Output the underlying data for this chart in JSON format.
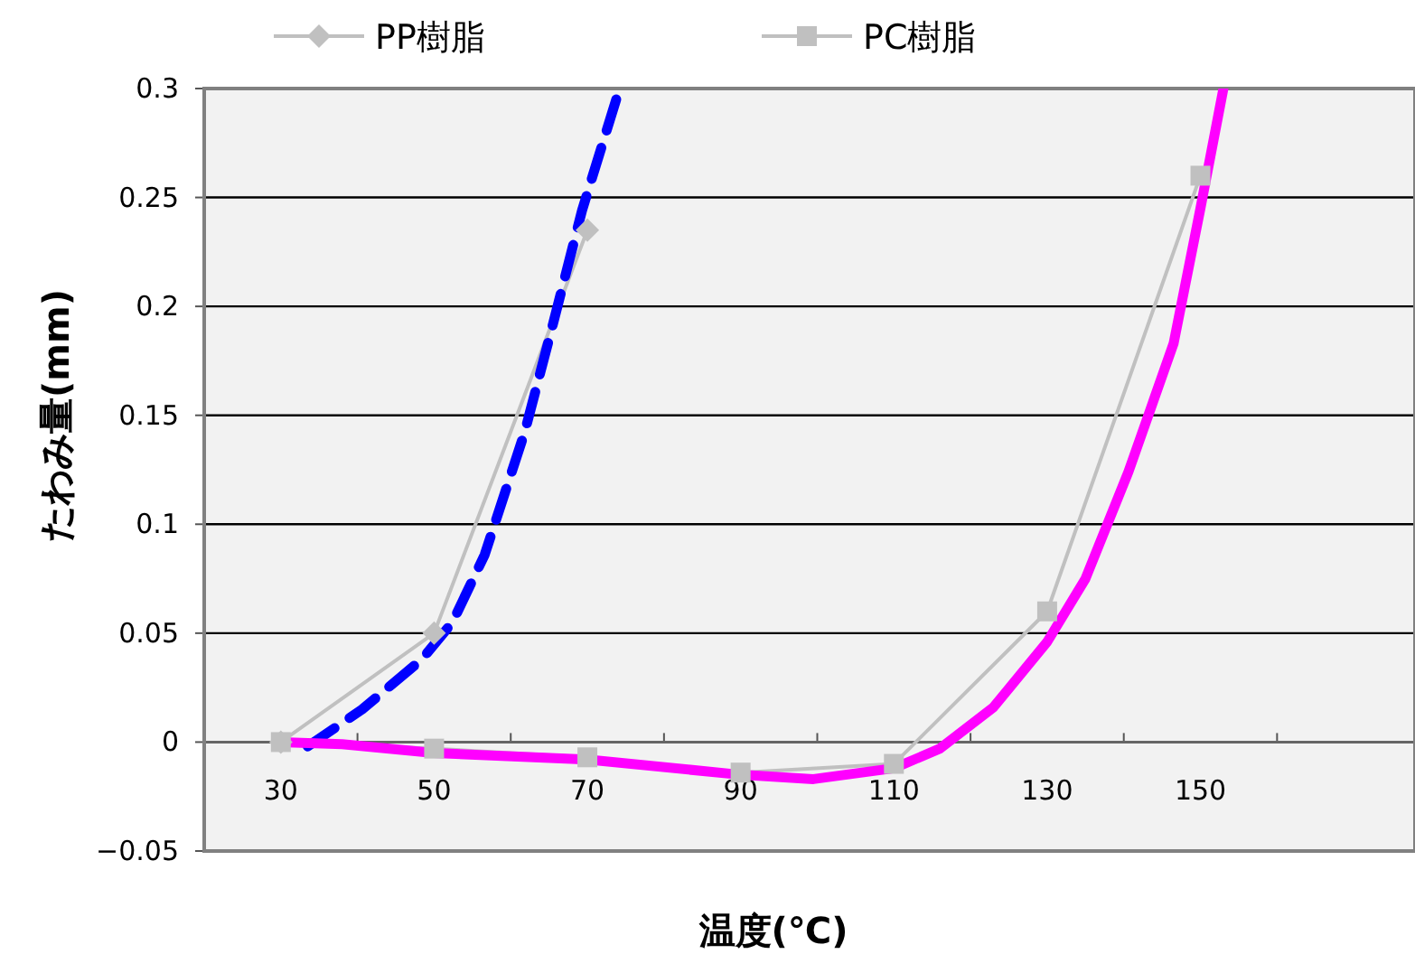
{
  "chart_data": {
    "type": "line",
    "xlabel": "温度(℃)",
    "ylabel": "たわみ量(mm)",
    "xlim": [
      20,
      178
    ],
    "ylim": [
      -0.05,
      0.3
    ],
    "xticks": [
      30,
      50,
      70,
      90,
      110,
      130,
      150,
      {
        "value": 40,
        "label": null
      },
      {
        "value": 60,
        "label": null
      },
      {
        "value": 80,
        "label": null
      },
      {
        "value": 100,
        "label": null
      },
      {
        "value": 120,
        "label": null
      },
      {
        "value": 140,
        "label": null
      },
      {
        "value": 160,
        "label": null
      }
    ],
    "yticks": [
      {
        "value": -0.05,
        "label": "−0.05"
      },
      0,
      0.05,
      0.1,
      0.15,
      0.2,
      0.25,
      0.3
    ],
    "grid": "y",
    "legend": "top",
    "series": [
      {
        "name": "PP樹脂",
        "color": "#c0c0c0",
        "marker": "diamond",
        "line_style": "solid",
        "x": [
          30,
          50,
          70
        ],
        "values": [
          0,
          0.05,
          0.235
        ]
      },
      {
        "name": "PC樹脂",
        "color": "#c0c0c0",
        "marker": "square",
        "line_style": "solid",
        "x": [
          30,
          50,
          70,
          90,
          110,
          130,
          150
        ],
        "values": [
          0,
          -0.003,
          -0.007,
          -0.014,
          -0.01,
          0.06,
          0.26
        ]
      },
      {
        "color": "#0000ff",
        "marker": "none",
        "line_style": "dashed",
        "x": [
          33.5,
          40.6,
          48.4,
          52.4,
          56.6,
          61.8,
          65.3,
          69.3,
          74.2
        ],
        "values": [
          -0.002,
          0.015,
          0.038,
          0.055,
          0.086,
          0.142,
          0.189,
          0.244,
          0.3
        ]
      },
      {
        "color": "#ff00ff",
        "marker": "none",
        "line_style": "solid",
        "x": [
          30,
          38,
          50,
          70,
          90,
          99.5,
          110,
          116,
          123,
          130,
          135,
          140.6,
          146.5,
          150,
          153
        ],
        "values": [
          0,
          -0.001,
          -0.005,
          -0.008,
          -0.015,
          -0.017,
          -0.012,
          -0.003,
          0.016,
          0.046,
          0.075,
          0.124,
          0.183,
          0.245,
          0.3
        ]
      }
    ]
  }
}
